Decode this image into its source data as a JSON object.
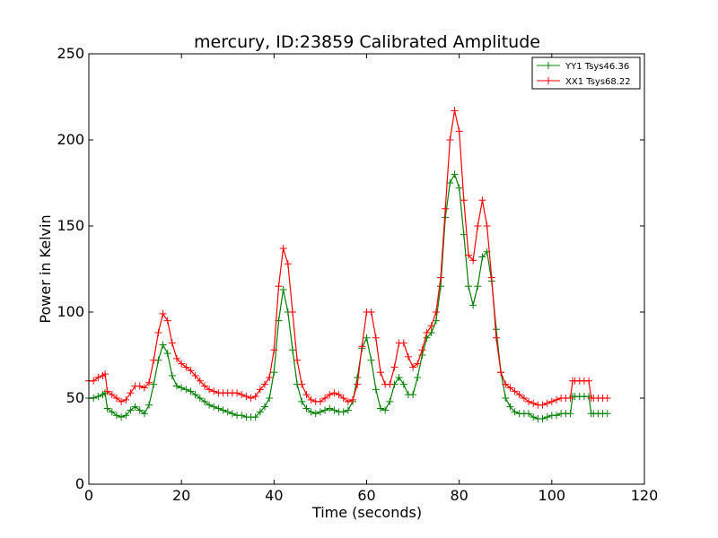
{
  "chart_data": {
    "type": "line",
    "title": "mercury, ID:23859 Calibrated Amplitude",
    "xlabel": "Time (seconds)",
    "ylabel": "Power in Kelvin",
    "xlim": [
      0,
      120
    ],
    "ylim": [
      0,
      250
    ],
    "xticks": [
      0,
      20,
      40,
      60,
      80,
      100,
      120
    ],
    "yticks": [
      0,
      50,
      100,
      150,
      200,
      250
    ],
    "grid": false,
    "legend_position": "top-right",
    "marker": "+",
    "series": [
      {
        "name": "YY1 Tsys46.36",
        "color": "#008000",
        "x": [
          0,
          1,
          2,
          3,
          3.5,
          4,
          5,
          6,
          7,
          8,
          9,
          10,
          11,
          12,
          13,
          14,
          15,
          16,
          17,
          18,
          19,
          20,
          21,
          22,
          23,
          24,
          25,
          26,
          27,
          28,
          29,
          30,
          31,
          32,
          33,
          34,
          35,
          36,
          37,
          38,
          39,
          40,
          41,
          42,
          43,
          44,
          45,
          46,
          47,
          48,
          49,
          50,
          51,
          52,
          53,
          54,
          55,
          56,
          57,
          58,
          59,
          60,
          61,
          62,
          63,
          64,
          65,
          66,
          67,
          68,
          69,
          70,
          71,
          72,
          73,
          74,
          75,
          76,
          77,
          78,
          79,
          80,
          81,
          82,
          83,
          84,
          85,
          86,
          87,
          88,
          89,
          90,
          91,
          92,
          93,
          94,
          95,
          96,
          97,
          98,
          99,
          100,
          101,
          102,
          103,
          104,
          104.5,
          105,
          106,
          107,
          108,
          108.5,
          109,
          110,
          111,
          112
        ],
        "values": [
          50,
          50,
          51,
          52,
          53,
          44,
          42,
          40,
          39,
          40,
          43,
          45,
          43,
          41,
          46,
          58,
          72,
          81,
          76,
          63,
          57,
          56,
          55,
          54,
          52,
          50,
          48,
          46,
          45,
          44,
          43,
          42,
          41,
          40,
          40,
          39,
          39,
          39,
          42,
          45,
          50,
          65,
          95,
          113,
          100,
          78,
          58,
          48,
          44,
          42,
          41,
          42,
          43,
          44,
          43,
          42,
          42,
          43,
          48,
          62,
          79,
          85,
          72,
          55,
          44,
          43,
          48,
          58,
          62,
          58,
          52,
          52,
          62,
          75,
          85,
          88,
          95,
          115,
          155,
          175,
          180,
          172,
          145,
          115,
          104,
          115,
          132,
          135,
          118,
          90,
          65,
          50,
          45,
          42,
          41,
          41,
          41,
          39,
          38,
          38,
          39,
          40,
          40,
          41,
          41,
          41,
          51,
          51,
          51,
          51,
          51,
          41,
          41,
          41,
          41,
          41
        ]
      },
      {
        "name": "XX1 Tsys68.22",
        "color": "#ff0000",
        "x": [
          0,
          1,
          2,
          3,
          3.5,
          4,
          5,
          6,
          7,
          8,
          9,
          10,
          11,
          12,
          13,
          14,
          15,
          16,
          17,
          18,
          19,
          20,
          21,
          22,
          23,
          24,
          25,
          26,
          27,
          28,
          29,
          30,
          31,
          32,
          33,
          34,
          35,
          36,
          37,
          38,
          39,
          40,
          41,
          42,
          43,
          44,
          45,
          46,
          47,
          48,
          49,
          50,
          51,
          52,
          53,
          54,
          55,
          56,
          57,
          58,
          59,
          60,
          61,
          62,
          63,
          64,
          65,
          66,
          67,
          68,
          69,
          70,
          71,
          72,
          73,
          74,
          75,
          76,
          77,
          78,
          79,
          80,
          81,
          82,
          83,
          84,
          85,
          86,
          87,
          88,
          89,
          90,
          91,
          92,
          93,
          94,
          95,
          96,
          97,
          98,
          99,
          100,
          101,
          102,
          103,
          104,
          104.5,
          105,
          106,
          107,
          108,
          108.5,
          109,
          110,
          111,
          112
        ],
        "values": [
          60,
          60,
          62,
          63,
          64,
          54,
          52,
          50,
          48,
          49,
          53,
          57,
          57,
          56,
          59,
          72,
          88,
          99,
          95,
          82,
          73,
          70,
          68,
          66,
          63,
          60,
          57,
          55,
          54,
          53,
          53,
          53,
          53,
          53,
          52,
          51,
          50,
          51,
          55,
          58,
          62,
          78,
          115,
          137,
          128,
          100,
          72,
          58,
          52,
          49,
          48,
          48,
          50,
          52,
          53,
          52,
          50,
          48,
          49,
          58,
          80,
          100,
          100,
          85,
          65,
          58,
          58,
          68,
          82,
          82,
          74,
          68,
          70,
          78,
          88,
          92,
          100,
          120,
          160,
          200,
          217,
          205,
          165,
          133,
          130,
          150,
          165,
          150,
          120,
          85,
          65,
          58,
          56,
          54,
          52,
          50,
          48,
          47,
          46,
          46,
          47,
          48,
          49,
          50,
          50,
          50,
          60,
          60,
          60,
          60,
          60,
          50,
          50,
          50,
          50,
          50
        ]
      }
    ]
  }
}
